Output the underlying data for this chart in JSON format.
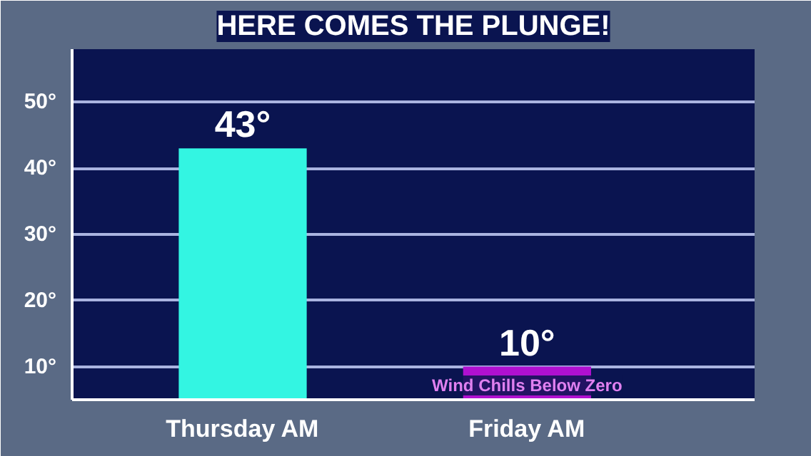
{
  "chart_data": {
    "type": "bar",
    "title": "HERE COMES THE PLUNGE!",
    "categories": [
      "Thursday AM",
      "Friday AM"
    ],
    "values": [
      43,
      10
    ],
    "colors": [
      "#33f5e2",
      "#b010d0"
    ],
    "value_labels": [
      "43°",
      "10°"
    ],
    "ylim": [
      5,
      58
    ],
    "yticks": [
      {
        "value": 10,
        "label": "10°"
      },
      {
        "value": 20,
        "label": "20°"
      },
      {
        "value": 30,
        "label": "30°"
      },
      {
        "value": 40,
        "label": "40°"
      },
      {
        "value": 50,
        "label": "50°"
      }
    ],
    "grid": "y",
    "annotations": [
      "Wind Chills Below Zero"
    ]
  }
}
